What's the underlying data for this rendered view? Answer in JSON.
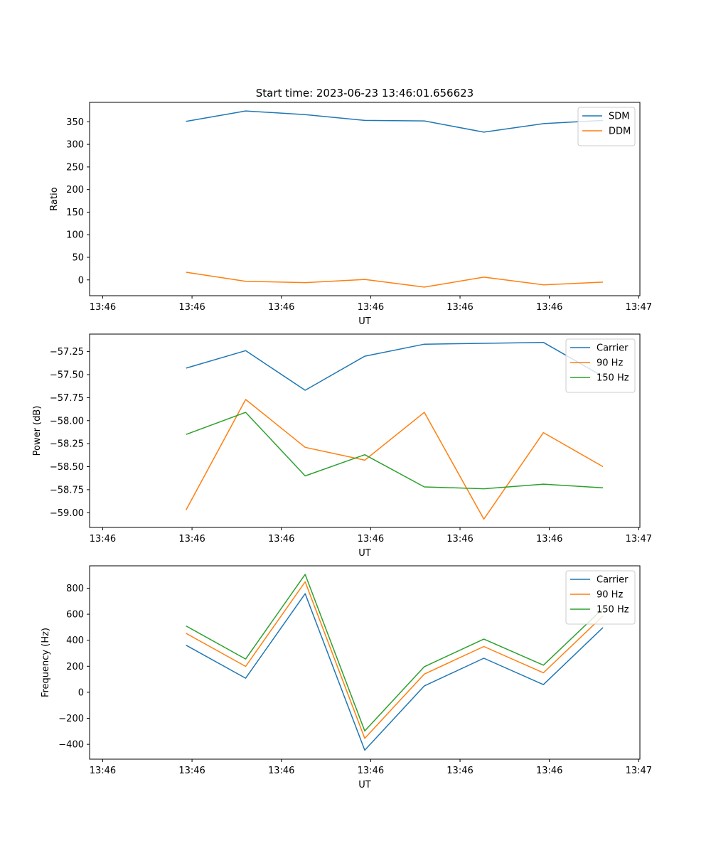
{
  "figure": {
    "title": "Start time: 2023-06-23 13:46:01.656623"
  },
  "chart_data": [
    {
      "type": "line",
      "title": "Start time: 2023-06-23 13:46:01.656623",
      "xlabel": "UT",
      "ylabel": "Ratio",
      "x_tick_labels": [
        "13:46",
        "13:46",
        "13:46",
        "13:46",
        "13:46",
        "13:46",
        "13:47"
      ],
      "xlim": [
        -0.62,
        8.62
      ],
      "ylim": [
        -35,
        393
      ],
      "y_ticks": [
        0,
        50,
        100,
        150,
        200,
        250,
        300,
        350
      ],
      "y_tick_labels": [
        "0",
        "50",
        "100",
        "150",
        "200",
        "250",
        "300",
        "350"
      ],
      "x": [
        1,
        2,
        3,
        4,
        5,
        6,
        7,
        8
      ],
      "legend": "top-right",
      "grid": false,
      "series": [
        {
          "name": "SDM",
          "color": "#1f77b4",
          "values": [
            351,
            374,
            366,
            353,
            352,
            327,
            346,
            353
          ]
        },
        {
          "name": "DDM",
          "color": "#ff7f0e",
          "values": [
            17,
            -3,
            -6,
            1,
            -16,
            6,
            -11,
            -5
          ]
        }
      ]
    },
    {
      "type": "line",
      "xlabel": "UT",
      "ylabel": "Power (dB)",
      "x_tick_labels": [
        "13:46",
        "13:46",
        "13:46",
        "13:46",
        "13:46",
        "13:46",
        "13:47"
      ],
      "xlim": [
        -0.62,
        8.62
      ],
      "ylim": [
        -59.16,
        -57.06
      ],
      "y_ticks": [
        -59.0,
        -58.75,
        -58.5,
        -58.25,
        -58.0,
        -57.75,
        -57.5,
        -57.25
      ],
      "y_tick_labels": [
        "−59.00",
        "−58.75",
        "−58.50",
        "−58.25",
        "−58.00",
        "−57.75",
        "−57.50",
        "−57.25"
      ],
      "x": [
        1,
        2,
        3,
        4,
        5,
        6,
        7,
        8
      ],
      "legend": "top-right",
      "grid": false,
      "series": [
        {
          "name": "Carrier",
          "color": "#1f77b4",
          "values": [
            -57.43,
            -57.24,
            -57.67,
            -57.3,
            -57.17,
            -57.16,
            -57.15,
            -57.52
          ]
        },
        {
          "name": "90 Hz",
          "color": "#ff7f0e",
          "values": [
            -58.97,
            -57.77,
            -58.29,
            -58.43,
            -57.91,
            -59.07,
            -58.13,
            -58.5
          ]
        },
        {
          "name": "150 Hz",
          "color": "#2ca02c",
          "values": [
            -58.15,
            -57.91,
            -58.6,
            -58.37,
            -58.72,
            -58.74,
            -58.69,
            -58.73
          ]
        }
      ]
    },
    {
      "type": "line",
      "xlabel": "UT",
      "ylabel": "Frequency (Hz)",
      "x_tick_labels": [
        "13:46",
        "13:46",
        "13:46",
        "13:46",
        "13:46",
        "13:46",
        "13:47"
      ],
      "xlim": [
        -0.62,
        8.62
      ],
      "ylim": [
        -514,
        972
      ],
      "y_ticks": [
        -400,
        -200,
        0,
        200,
        400,
        600,
        800
      ],
      "y_tick_labels": [
        "−400",
        "−200",
        "0",
        "200",
        "400",
        "600",
        "800"
      ],
      "x": [
        1,
        2,
        3,
        4,
        5,
        6,
        7,
        8
      ],
      "legend": "top-right",
      "grid": false,
      "series": [
        {
          "name": "Carrier",
          "color": "#1f77b4",
          "values": [
            362,
            108,
            758,
            -445,
            49,
            262,
            59,
            498
          ]
        },
        {
          "name": "90 Hz",
          "color": "#ff7f0e",
          "values": [
            453,
            199,
            849,
            -354,
            140,
            352,
            150,
            587
          ]
        },
        {
          "name": "150 Hz",
          "color": "#2ca02c",
          "values": [
            510,
            256,
            906,
            -297,
            197,
            409,
            208,
            644
          ]
        }
      ]
    }
  ]
}
